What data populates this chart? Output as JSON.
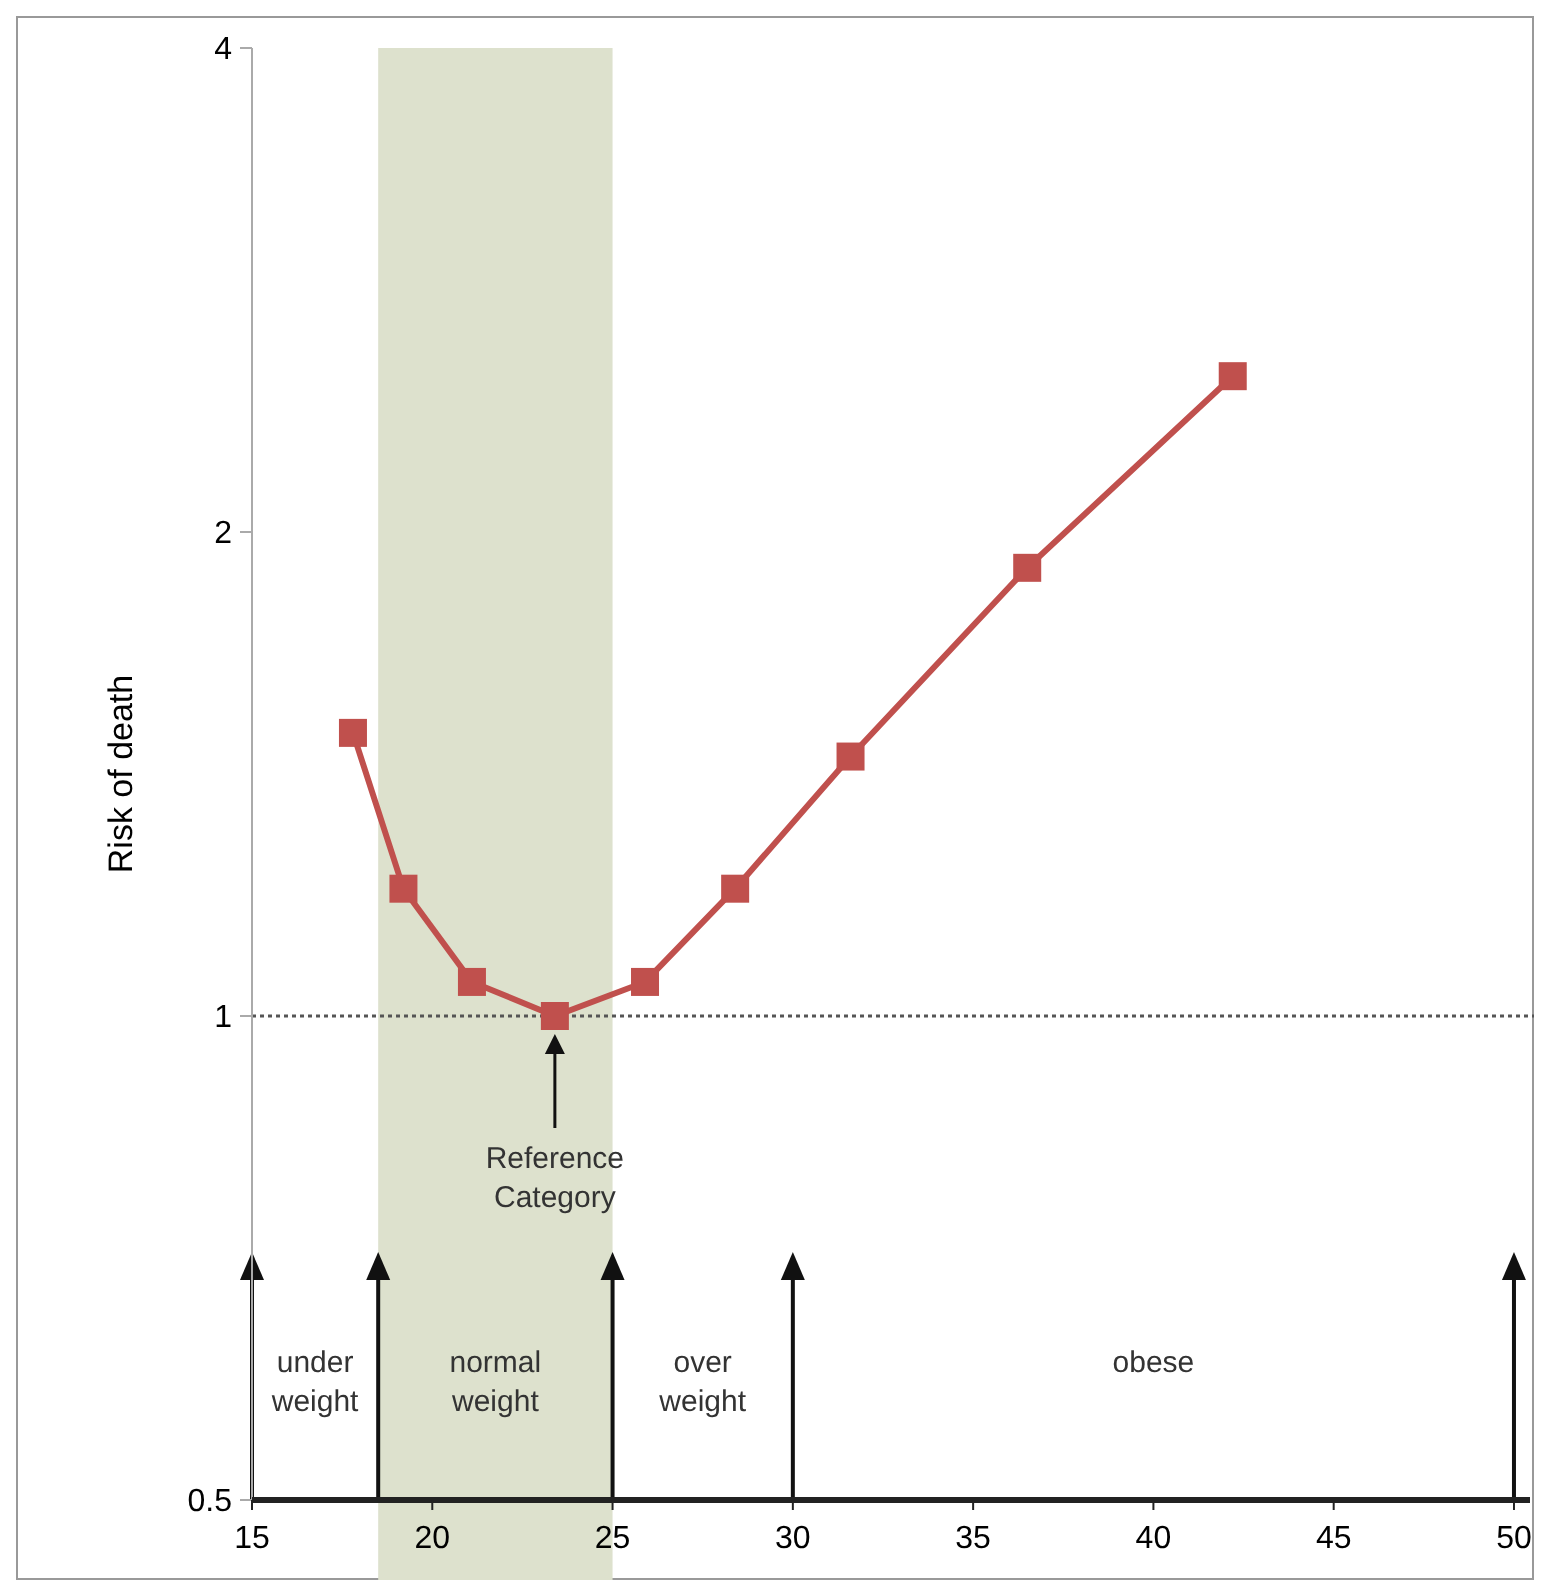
{
  "chart_data": {
    "type": "line",
    "ylabel": "Risk of death",
    "log": "y",
    "marker": "square",
    "line_style": "solid",
    "x": [
      17.8,
      19.2,
      21.1,
      23.4,
      25.9,
      28.4,
      31.6,
      36.5,
      42.2
    ],
    "series": [
      {
        "color": "#c0504d",
        "values": [
          1.5,
          1.2,
          1.05,
          1.0,
          1.05,
          1.2,
          1.45,
          1.9,
          2.5
        ]
      }
    ],
    "xlim": [
      15,
      50.5
    ],
    "xticks": [
      15,
      20,
      25,
      30,
      35,
      40,
      45,
      50
    ],
    "ylim": [
      0.5,
      4
    ],
    "yticks": [
      0.5,
      1,
      2,
      4
    ],
    "ref_lines": [
      {
        "axis": "y",
        "value": 1,
        "line_style": "dotted",
        "color": "#555555"
      },
      {
        "axis": "x",
        "value": 15,
        "color": "#111111"
      },
      {
        "axis": "x",
        "value": 18.5,
        "color": "#111111"
      },
      {
        "axis": "x",
        "value": 25,
        "color": "#111111"
      },
      {
        "axis": "x",
        "value": 30,
        "color": "#111111"
      },
      {
        "axis": "x",
        "value": 50,
        "color": "#111111"
      }
    ],
    "bands": [
      {
        "axis": "x",
        "from": 18.5,
        "to": 25,
        "color": "#dde1cd"
      }
    ],
    "annotations": [
      "under\nweight",
      "normal\nweight",
      "over\nweight",
      "obese",
      "Reference\nCategory"
    ]
  }
}
